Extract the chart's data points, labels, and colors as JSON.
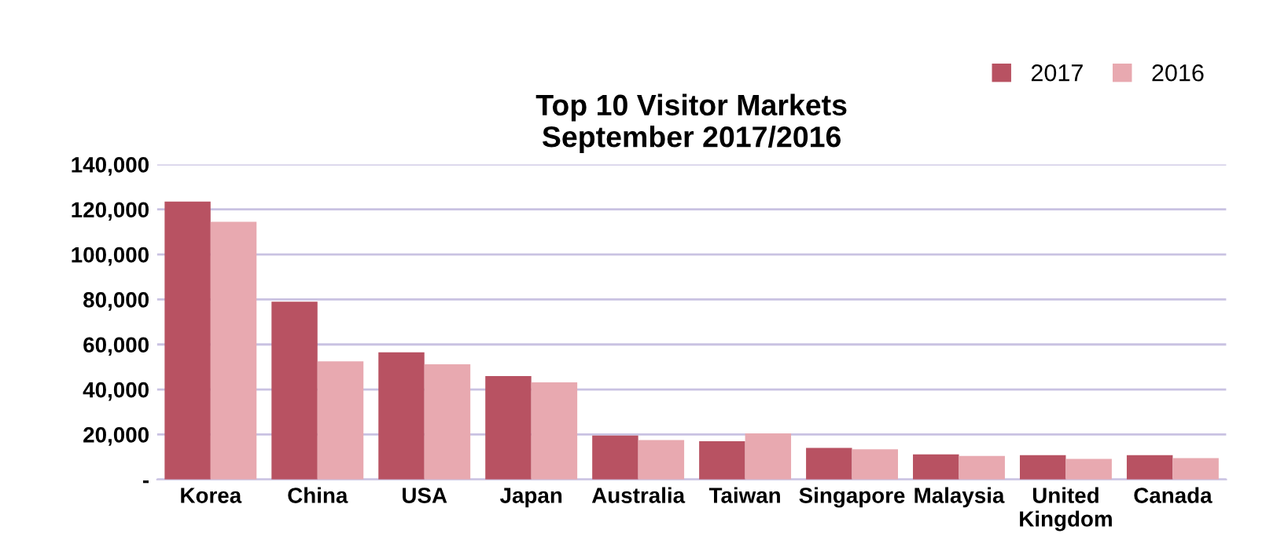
{
  "chart_data": {
    "type": "bar",
    "title": "Top 10 Visitor Markets\nSeptember 2017/2016",
    "categories": [
      "Korea",
      "China",
      "USA",
      "Japan",
      "Australia",
      "Taiwan",
      "Singapore",
      "Malaysia",
      "United\nKingdom",
      "Canada"
    ],
    "series": [
      {
        "name": "2017",
        "color": "#b85262",
        "values": [
          123500,
          79000,
          56500,
          46000,
          19500,
          17000,
          14000,
          11200,
          10800,
          10800
        ]
      },
      {
        "name": "2016",
        "color": "#e8a9b0",
        "values": [
          114500,
          52500,
          51200,
          43200,
          17500,
          20500,
          13400,
          10500,
          9200,
          9500
        ]
      }
    ],
    "ylim": [
      0,
      140000
    ],
    "yticks": [
      {
        "value": 0,
        "label": "-"
      },
      {
        "value": 20000,
        "label": "20,000"
      },
      {
        "value": 40000,
        "label": "40,000"
      },
      {
        "value": 60000,
        "label": "60,000"
      },
      {
        "value": 80000,
        "label": "80,000"
      },
      {
        "value": 100000,
        "label": "100,000"
      },
      {
        "value": 120000,
        "label": "120,000"
      },
      {
        "value": 140000,
        "label": "140,000"
      }
    ],
    "grid": "y",
    "legend": "top right"
  }
}
